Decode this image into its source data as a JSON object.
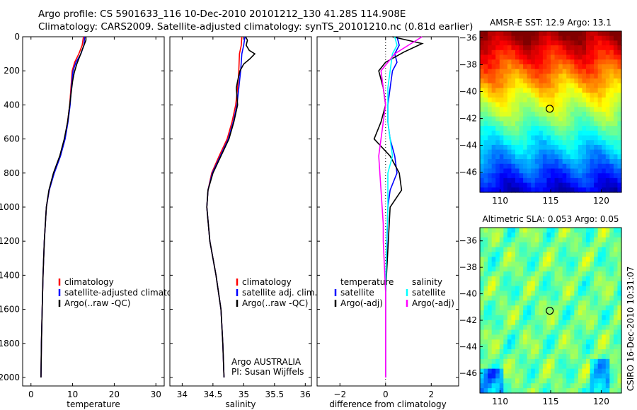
{
  "title_line1": "Argo profile: CS 5901633_116 10-Dec-2010 20101212_130 41.28S 114.908E",
  "title_line2": "Climatology: CARS2009. Satellite-adjusted climatology: synTS_20101210.nc (0.81d earlier)",
  "credit": "CSIRO 16-Dec-2010 10:31:07",
  "colors": {
    "clim": "#ff0000",
    "sat": "#0000ff",
    "argo": "#000000",
    "cyan": "#00ffff",
    "magenta": "#ff00ff"
  },
  "chart_data": [
    {
      "type": "line",
      "id": "temperature",
      "xlabel": "temperature",
      "ylabel": "",
      "xlim": [
        -2,
        32
      ],
      "ylim": [
        2050,
        0
      ],
      "xticks": [
        0,
        10,
        20,
        30
      ],
      "yticks": [
        0,
        200,
        400,
        600,
        800,
        1000,
        1200,
        1400,
        1600,
        1800,
        2000
      ],
      "legend": [
        "climatology",
        "satellite-adjusted climatology",
        "Argo(..raw -QC)"
      ],
      "series": [
        {
          "name": "climatology",
          "color": "#ff0000",
          "x": [
            12.6,
            12.3,
            11.5,
            10.5,
            9.9,
            9.6,
            9.3,
            8.8,
            8.1,
            7.0,
            5.5,
            4.4,
            3.7,
            3.2,
            2.9,
            2.7,
            2.5,
            2.4
          ],
          "y": [
            0,
            50,
            100,
            150,
            200,
            300,
            400,
            500,
            600,
            700,
            800,
            900,
            1000,
            1200,
            1400,
            1600,
            1800,
            2000
          ]
        },
        {
          "name": "satellite-adjusted climatology",
          "color": "#0000ff",
          "x": [
            12.9,
            12.7,
            12.0,
            10.8,
            10.1,
            9.7,
            9.4,
            8.9,
            8.2,
            7.1,
            5.6,
            4.4,
            3.7,
            3.2,
            2.9,
            2.7,
            2.5,
            2.4
          ],
          "y": [
            0,
            50,
            100,
            150,
            200,
            300,
            400,
            500,
            600,
            700,
            800,
            900,
            1000,
            1200,
            1400,
            1600,
            1800,
            2000
          ]
        },
        {
          "name": "Argo(..raw -QC)",
          "color": "#000000",
          "x": [
            13.2,
            13.2,
            12.9,
            12.4,
            11.8,
            11.0,
            10.4,
            10.0,
            9.7,
            9.3,
            8.8,
            8.0,
            6.9,
            5.4,
            4.3,
            3.7,
            3.2,
            2.9,
            2.7,
            2.5,
            2.4
          ],
          "y": [
            0,
            20,
            40,
            70,
            110,
            160,
            210,
            260,
            320,
            400,
            500,
            600,
            700,
            800,
            900,
            1000,
            1200,
            1400,
            1600,
            1800,
            2000
          ]
        }
      ]
    },
    {
      "type": "line",
      "id": "salinity",
      "xlabel": "salinity",
      "ylabel": "",
      "xlim": [
        33.8,
        36.1
      ],
      "ylim": [
        2050,
        0
      ],
      "xticks": [
        34,
        34.5,
        35,
        35.5,
        36
      ],
      "xticklabels": [
        "34",
        "34.5",
        "35",
        "35.5",
        "36"
      ],
      "yticks": [
        0,
        200,
        400,
        600,
        800,
        1000,
        1200,
        1400,
        1600,
        1800,
        2000
      ],
      "legend": [
        "climatology",
        "satellite adj. clim.",
        "Argo(..raw -QC)"
      ],
      "annotation": [
        "Argo AUSTRALIA",
        "PI: Susan Wijffels"
      ],
      "series": [
        {
          "name": "climatology",
          "color": "#ff0000",
          "x": [
            34.97,
            34.96,
            34.93,
            34.92,
            34.9,
            34.87,
            34.81,
            34.73,
            34.6,
            34.48,
            34.42,
            34.4,
            34.45,
            34.55,
            34.63,
            34.66,
            34.68
          ],
          "y": [
            0,
            50,
            100,
            200,
            300,
            400,
            500,
            600,
            700,
            800,
            900,
            1000,
            1200,
            1400,
            1600,
            1800,
            2000
          ]
        },
        {
          "name": "satellite adj. clim.",
          "color": "#0000ff",
          "x": [
            35.02,
            35.0,
            34.97,
            34.95,
            34.92,
            34.89,
            34.83,
            34.75,
            34.62,
            34.49,
            34.42,
            34.4,
            34.45,
            34.55,
            34.63,
            34.66,
            34.68
          ],
          "y": [
            0,
            50,
            100,
            200,
            300,
            400,
            500,
            600,
            700,
            800,
            900,
            1000,
            1200,
            1400,
            1600,
            1800,
            2000
          ]
        },
        {
          "name": "Argo(..raw -QC)",
          "color": "#000000",
          "x": [
            35.03,
            35.06,
            35.04,
            35.09,
            35.18,
            35.1,
            35.0,
            34.94,
            34.9,
            34.88,
            34.9,
            34.84,
            34.76,
            34.63,
            34.5,
            34.42,
            34.4,
            34.45,
            34.55,
            34.63,
            34.66,
            34.68
          ],
          "y": [
            0,
            20,
            50,
            80,
            100,
            130,
            160,
            200,
            260,
            300,
            400,
            500,
            600,
            700,
            800,
            900,
            1000,
            1200,
            1400,
            1600,
            1800,
            2000
          ]
        }
      ]
    },
    {
      "type": "line",
      "id": "difference",
      "xlabel": "difference from climatology",
      "ylabel": "",
      "xlim": [
        -3,
        3.2
      ],
      "ylim": [
        2050,
        0
      ],
      "xticks": [
        -2,
        0,
        2
      ],
      "xticklabels": [
        "−2",
        "0",
        "2"
      ],
      "yticks": [
        0,
        200,
        400,
        600,
        800,
        1000,
        1200,
        1400,
        1600,
        1800,
        2000
      ],
      "legend": {
        "temperature": [
          "temperature",
          "satellite",
          "Argo(-adj)"
        ],
        "salinity": [
          "salinity",
          "satellite",
          "Argo(-adj)"
        ]
      },
      "series": [
        {
          "name": "temperature satellite",
          "color": "#0000ff",
          "x": [
            0.5,
            0.6,
            0.4,
            0.5,
            0.3,
            0.2,
            0.1,
            0.1,
            0.2,
            0.4,
            0.5,
            0.2,
            0.1,
            0.0,
            0.0
          ],
          "y": [
            0,
            50,
            100,
            150,
            200,
            300,
            400,
            500,
            600,
            700,
            800,
            900,
            1000,
            1500,
            2000
          ]
        },
        {
          "name": "temperature Argo(-adj)",
          "color": "#000000",
          "x": [
            0.3,
            1.6,
            0.8,
            0.0,
            -0.3,
            -0.1,
            0.0,
            -0.2,
            -0.5,
            0.2,
            0.6,
            0.7,
            0.2,
            0.0,
            0.0
          ],
          "y": [
            0,
            40,
            90,
            150,
            200,
            300,
            400,
            500,
            600,
            700,
            800,
            900,
            1000,
            1500,
            2000
          ]
        },
        {
          "name": "salinity satellite",
          "color": "#00ffff",
          "x": [
            0.4,
            0.5,
            0.3,
            0.2,
            0.1,
            0.1,
            0.1,
            0.2,
            0.3,
            0.1,
            0.1,
            0.05,
            0.0,
            0.0
          ],
          "y": [
            0,
            50,
            100,
            200,
            300,
            400,
            500,
            600,
            700,
            800,
            1000,
            1200,
            1500,
            2000
          ]
        },
        {
          "name": "salinity Argo(-adj)",
          "color": "#ff00ff",
          "x": [
            1.6,
            1.0,
            0.4,
            -0.2,
            -0.1,
            0.0,
            -0.1,
            -0.2,
            -0.3,
            -0.2,
            -0.1,
            -0.1,
            0.0,
            0.0
          ],
          "y": [
            0,
            50,
            100,
            200,
            300,
            400,
            500,
            600,
            700,
            900,
            1100,
            1200,
            1500,
            2000
          ]
        }
      ]
    },
    {
      "type": "heatmap",
      "id": "sst_map",
      "title": "AMSR-E SST: 12.9 Argo: 13.1",
      "xlim": [
        108,
        122
      ],
      "ylim": [
        -47.5,
        -35.5
      ],
      "xticks": [
        110,
        115,
        120
      ],
      "yticks": [
        -36,
        -38,
        -40,
        -42,
        -44,
        -46
      ],
      "marker": {
        "lon": 114.908,
        "lat": -41.28
      }
    },
    {
      "type": "heatmap",
      "id": "sla_map",
      "title": "Altimetric SLA: 0.053 Argo: 0.05",
      "xlim": [
        108,
        122
      ],
      "ylim": [
        -47.5,
        -35
      ],
      "xticks": [
        110,
        115,
        120
      ],
      "yticks": [
        -36,
        -38,
        -40,
        -42,
        -44,
        -46
      ],
      "marker": {
        "lon": 114.908,
        "lat": -41.28
      }
    }
  ]
}
